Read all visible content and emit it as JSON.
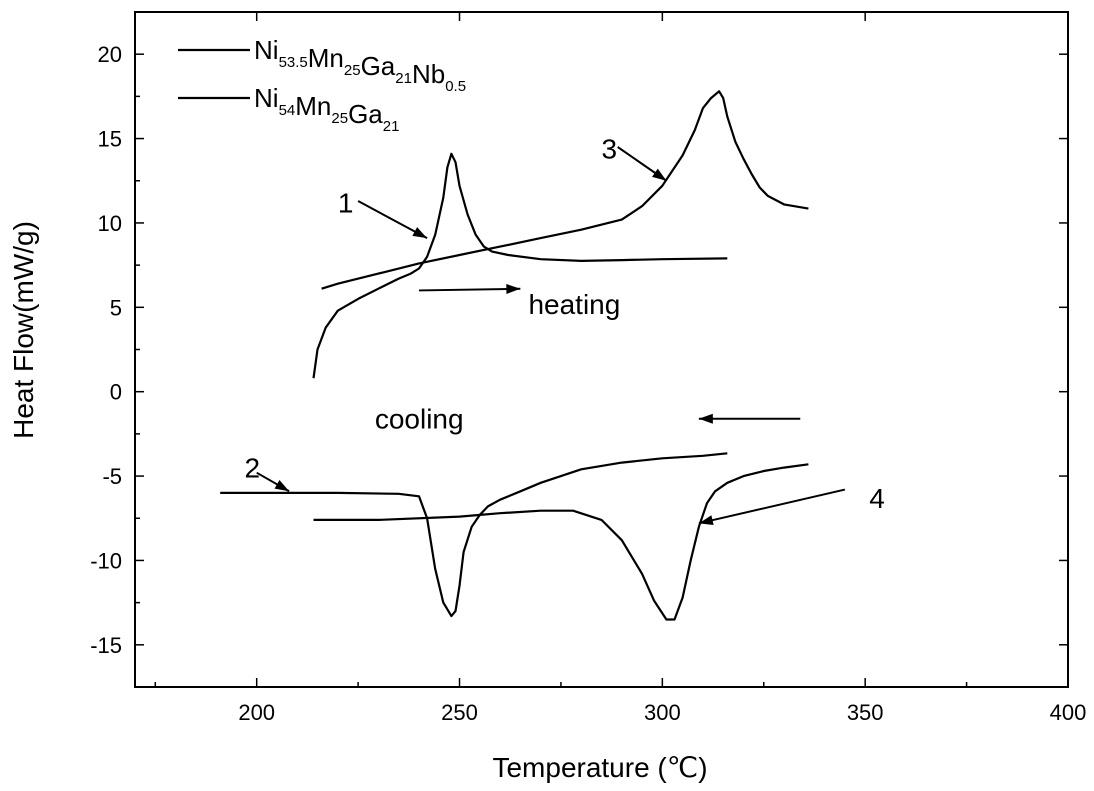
{
  "chart_data": {
    "type": "line",
    "xlabel": "Temperature (℃)",
    "ylabel": "Heat Flow(mW/g)",
    "xlim": [
      170,
      400
    ],
    "ylim": [
      -17.5,
      22.5
    ],
    "x_ticks": [
      200,
      250,
      300,
      350,
      400
    ],
    "y_ticks": [
      20,
      15,
      10,
      5,
      0,
      -5,
      -10,
      -15
    ],
    "legend_position": "top-left",
    "legend": [
      {
        "parts": [
          [
            "Ni",
            "53.5"
          ],
          [
            "Mn",
            "25"
          ],
          [
            "Ga",
            "21"
          ],
          [
            "Nb",
            "0.5"
          ]
        ]
      },
      {
        "parts": [
          [
            "Ni",
            "54"
          ],
          [
            "Mn",
            "25"
          ],
          [
            "Ga",
            "21"
          ]
        ]
      }
    ],
    "series": [
      {
        "legend_index": 0,
        "segment": "heating",
        "points": [
          [
            214,
            0.8
          ],
          [
            215,
            2.5
          ],
          [
            217,
            3.8
          ],
          [
            220,
            4.8
          ],
          [
            225,
            5.5
          ],
          [
            230,
            6.1
          ],
          [
            235,
            6.7
          ],
          [
            238,
            7.0
          ],
          [
            240,
            7.3
          ],
          [
            242,
            8.0
          ],
          [
            244,
            9.3
          ],
          [
            246,
            11.5
          ],
          [
            247,
            13.3
          ],
          [
            248,
            14.1
          ],
          [
            249,
            13.6
          ],
          [
            250,
            12.2
          ],
          [
            252,
            10.5
          ],
          [
            254,
            9.3
          ],
          [
            256,
            8.6
          ],
          [
            258,
            8.3
          ],
          [
            262,
            8.1
          ],
          [
            270,
            7.85
          ],
          [
            280,
            7.75
          ],
          [
            290,
            7.8
          ],
          [
            300,
            7.85
          ],
          [
            316,
            7.9
          ]
        ]
      },
      {
        "legend_index": 0,
        "segment": "cooling",
        "points": [
          [
            191,
            -6.0
          ],
          [
            200,
            -6.0
          ],
          [
            210,
            -6.0
          ],
          [
            220,
            -6.0
          ],
          [
            235,
            -6.05
          ],
          [
            240,
            -6.2
          ],
          [
            242,
            -7.5
          ],
          [
            244,
            -10.5
          ],
          [
            246,
            -12.5
          ],
          [
            248,
            -13.3
          ],
          [
            249,
            -13.0
          ],
          [
            250,
            -11.5
          ],
          [
            251,
            -9.5
          ],
          [
            253,
            -8.0
          ],
          [
            255,
            -7.3
          ],
          [
            257,
            -6.8
          ],
          [
            260,
            -6.4
          ],
          [
            265,
            -5.9
          ],
          [
            270,
            -5.4
          ],
          [
            280,
            -4.6
          ],
          [
            290,
            -4.2
          ],
          [
            300,
            -3.95
          ],
          [
            310,
            -3.8
          ],
          [
            316,
            -3.65
          ]
        ]
      },
      {
        "legend_index": 1,
        "segment": "heating",
        "points": [
          [
            216,
            6.1
          ],
          [
            220,
            6.4
          ],
          [
            230,
            7.0
          ],
          [
            240,
            7.6
          ],
          [
            250,
            8.1
          ],
          [
            260,
            8.6
          ],
          [
            270,
            9.1
          ],
          [
            280,
            9.6
          ],
          [
            290,
            10.2
          ],
          [
            295,
            11.0
          ],
          [
            300,
            12.2
          ],
          [
            305,
            14.0
          ],
          [
            308,
            15.5
          ],
          [
            310,
            16.8
          ],
          [
            312,
            17.4
          ],
          [
            314,
            17.8
          ],
          [
            315,
            17.4
          ],
          [
            316,
            16.3
          ],
          [
            318,
            14.8
          ],
          [
            320,
            13.8
          ],
          [
            322,
            12.9
          ],
          [
            324,
            12.1
          ],
          [
            326,
            11.6
          ],
          [
            330,
            11.1
          ],
          [
            336,
            10.85
          ]
        ]
      },
      {
        "legend_index": 1,
        "segment": "cooling",
        "points": [
          [
            214,
            -7.6
          ],
          [
            230,
            -7.6
          ],
          [
            250,
            -7.4
          ],
          [
            260,
            -7.2
          ],
          [
            270,
            -7.05
          ],
          [
            278,
            -7.05
          ],
          [
            285,
            -7.6
          ],
          [
            290,
            -8.8
          ],
          [
            295,
            -10.8
          ],
          [
            298,
            -12.4
          ],
          [
            301,
            -13.5
          ],
          [
            303,
            -13.5
          ],
          [
            305,
            -12.2
          ],
          [
            307,
            -10.0
          ],
          [
            309,
            -8.0
          ],
          [
            311,
            -6.6
          ],
          [
            313,
            -5.9
          ],
          [
            316,
            -5.4
          ],
          [
            320,
            -5.0
          ],
          [
            325,
            -4.7
          ],
          [
            330,
            -4.5
          ],
          [
            336,
            -4.3
          ]
        ]
      }
    ],
    "annotations": [
      {
        "text": "1",
        "label_at": [
          220,
          11.2
        ],
        "arrow_from": [
          225,
          11.3
        ],
        "arrow_to": [
          242,
          9.1
        ]
      },
      {
        "text": "2",
        "label_at": [
          197,
          -4.5
        ],
        "arrow_from": [
          200,
          -4.8
        ],
        "arrow_to": [
          208,
          -5.9
        ]
      },
      {
        "text": "3",
        "label_at": [
          285,
          14.4
        ],
        "arrow_from": [
          289,
          14.5
        ],
        "arrow_to": [
          301,
          12.5
        ]
      },
      {
        "text": "4",
        "label_at": [
          351,
          -6.3
        ],
        "arrow_from": [
          345,
          -5.8
        ],
        "arrow_to": [
          309,
          -7.8
        ]
      },
      {
        "text": "heating",
        "label_at": [
          267,
          5.2
        ],
        "arrow_from": [
          240,
          6.0
        ],
        "arrow_to": [
          265,
          6.1
        ]
      },
      {
        "text": "cooling",
        "label_at": [
          251,
          -1.6
        ],
        "arrow_from": [
          334,
          -1.6
        ],
        "arrow_to": [
          309,
          -1.6
        ]
      }
    ]
  }
}
